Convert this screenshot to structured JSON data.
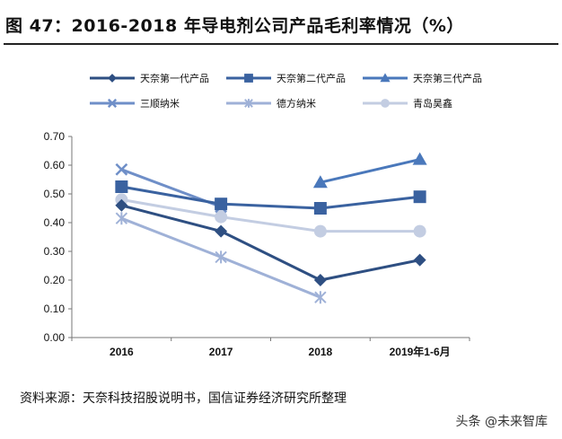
{
  "title": "图 47：2016-2018 年导电剂公司产品毛利率情况（%）",
  "source": "资料来源：天奈科技招股说明书，国信证券经济研究所整理",
  "watermark": "头条 @未来智库",
  "chart_data": {
    "type": "line",
    "categories": [
      "2016",
      "2017",
      "2018",
      "2019年1-6月"
    ],
    "ylim": [
      0,
      0.7
    ],
    "yticks": [
      "0.00",
      "0.10",
      "0.20",
      "0.30",
      "0.40",
      "0.50",
      "0.60",
      "0.70"
    ],
    "grid": false,
    "legend_position": "top",
    "series": [
      {
        "name": "天奈第一代产品",
        "values": [
          0.46,
          0.37,
          0.2,
          0.27
        ],
        "color": "#2e4f82",
        "marker": "diamond"
      },
      {
        "name": "天奈第二代产品",
        "values": [
          0.525,
          0.465,
          0.45,
          0.49
        ],
        "color": "#3a62a0",
        "marker": "square"
      },
      {
        "name": "天奈第三代产品",
        "values": [
          null,
          null,
          0.54,
          0.62
        ],
        "color": "#4a78bb",
        "marker": "triangle"
      },
      {
        "name": "三顺纳米",
        "values": [
          0.585,
          0.455,
          null,
          null
        ],
        "color": "#6f8fc8",
        "marker": "x"
      },
      {
        "name": "德方纳米",
        "values": [
          0.415,
          0.28,
          0.14,
          null
        ],
        "color": "#9fb1d7",
        "marker": "star"
      },
      {
        "name": "青岛昊鑫",
        "values": [
          0.48,
          0.42,
          0.37,
          0.37
        ],
        "color": "#c3cde2",
        "marker": "circle"
      }
    ]
  }
}
